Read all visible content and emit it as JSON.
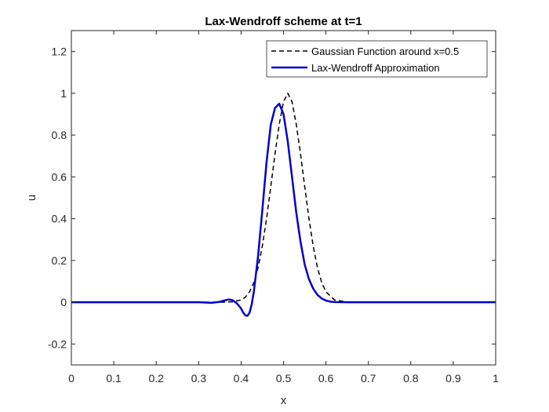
{
  "chart_data": {
    "type": "line",
    "title": "Lax-Wendroff scheme at t=1",
    "xlabel": "x",
    "ylabel": "u",
    "xlim": [
      0,
      1
    ],
    "ylim": [
      -0.3,
      1.3
    ],
    "xticks": [
      0,
      0.1,
      0.2,
      0.3,
      0.4,
      0.5,
      0.6,
      0.7,
      0.8,
      0.9,
      1
    ],
    "xtick_labels": [
      "0",
      "0.1",
      "0.2",
      "0.3",
      "0.4",
      "0.5",
      "0.6",
      "0.7",
      "0.8",
      "0.9",
      "1"
    ],
    "yticks": [
      -0.2,
      0,
      0.2,
      0.4,
      0.6,
      0.8,
      1,
      1.2
    ],
    "ytick_labels": [
      "-0.2",
      "0",
      "0.2",
      "0.4",
      "0.6",
      "0.8",
      "1",
      "1.2"
    ],
    "grid": false,
    "legend_position": "top-right",
    "series": [
      {
        "name": "Gaussian Function around x=0.5",
        "color": "#000000",
        "style": "dashed",
        "x": [
          0,
          0.1,
          0.2,
          0.3,
          0.35,
          0.38,
          0.4,
          0.41,
          0.42,
          0.43,
          0.44,
          0.45,
          0.46,
          0.47,
          0.48,
          0.49,
          0.5,
          0.51,
          0.52,
          0.53,
          0.54,
          0.55,
          0.56,
          0.57,
          0.58,
          0.59,
          0.6,
          0.62,
          0.65,
          0.7,
          0.8,
          0.9,
          1
        ],
        "y": [
          0,
          0,
          0,
          0,
          0,
          0.002,
          0.011,
          0.024,
          0.05,
          0.094,
          0.165,
          0.268,
          0.4,
          0.553,
          0.71,
          0.852,
          0.96,
          1.0,
          0.96,
          0.852,
          0.71,
          0.553,
          0.4,
          0.268,
          0.165,
          0.094,
          0.05,
          0.011,
          0.001,
          0,
          0,
          0,
          0
        ]
      },
      {
        "name": "Lax-Wendroff Approximation",
        "color": "#0000CD",
        "style": "solid",
        "x": [
          0,
          0.1,
          0.2,
          0.3,
          0.33,
          0.35,
          0.36,
          0.37,
          0.38,
          0.39,
          0.4,
          0.405,
          0.41,
          0.415,
          0.42,
          0.425,
          0.43,
          0.44,
          0.45,
          0.46,
          0.47,
          0.48,
          0.49,
          0.5,
          0.51,
          0.52,
          0.53,
          0.54,
          0.55,
          0.56,
          0.57,
          0.58,
          0.59,
          0.6,
          0.61,
          0.62,
          0.65,
          0.7,
          0.8,
          0.9,
          1
        ],
        "y": [
          0,
          0,
          0,
          0,
          -0.003,
          0.002,
          0.008,
          0.013,
          0.01,
          -0.005,
          -0.03,
          -0.05,
          -0.063,
          -0.065,
          -0.05,
          -0.01,
          0.05,
          0.22,
          0.44,
          0.67,
          0.85,
          0.93,
          0.95,
          0.9,
          0.77,
          0.6,
          0.43,
          0.29,
          0.18,
          0.11,
          0.065,
          0.035,
          0.018,
          0.008,
          0.003,
          0.001,
          0,
          0,
          0,
          0,
          0
        ]
      }
    ]
  }
}
